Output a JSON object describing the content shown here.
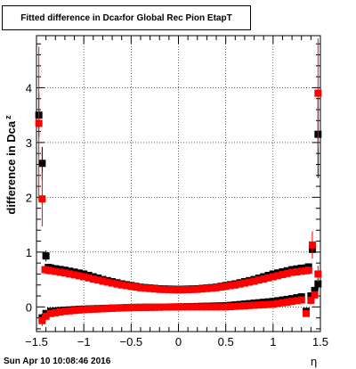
{
  "title": {
    "prefix": "Fitted difference in Dca",
    "sub": "z",
    "suffix": " for Global Rec Pion EtapT"
  },
  "footer": {
    "date": "Sun Apr 10 10:08:46 2016"
  },
  "chart_data": {
    "type": "scatter",
    "xlabel": "η",
    "ylabel": "difference in Dca",
    "ylabel_sub": "z",
    "xlim": [
      -1.5,
      1.5
    ],
    "ylim": [
      -0.45,
      4.95
    ],
    "xticks": [
      -1.5,
      -1,
      -0.5,
      0,
      0.5,
      1,
      1.5
    ],
    "xtick_labels": [
      "−1.5",
      "−1",
      "−0.5",
      "0",
      "0.5",
      "1",
      "1.5"
    ],
    "yticks": [
      0,
      1,
      2,
      3,
      4
    ],
    "ytick_labels": [
      "0",
      "1",
      "2",
      "3",
      "4"
    ],
    "grid": true,
    "colors": {
      "black": "#000000",
      "red": "#ff0000"
    },
    "series": [
      {
        "color": "#000000",
        "marker": "square",
        "points": [
          [
            -1.475,
            3.5,
            0.4
          ],
          [
            -1.44,
            2.62,
            0.3
          ],
          [
            -1.4,
            0.93,
            0.1
          ],
          [
            -1.375,
            0.72,
            0.05
          ],
          [
            1.375,
            0.73,
            0.05
          ],
          [
            1.415,
            1.05,
            0.15
          ],
          [
            1.475,
            3.15,
            0.8
          ]
        ],
        "curve": [
          [
            -1.35,
            0.71
          ],
          [
            -1.2,
            0.67
          ],
          [
            -1.0,
            0.6
          ],
          [
            -0.8,
            0.5
          ],
          [
            -0.6,
            0.42
          ],
          [
            -0.4,
            0.36
          ],
          [
            -0.2,
            0.33
          ],
          [
            0.0,
            0.32
          ],
          [
            0.2,
            0.33
          ],
          [
            0.4,
            0.36
          ],
          [
            0.6,
            0.42
          ],
          [
            0.8,
            0.5
          ],
          [
            1.0,
            0.6
          ],
          [
            1.2,
            0.68
          ],
          [
            1.35,
            0.72
          ]
        ],
        "low_points": [
          [
            -1.44,
            -0.2,
            0.08
          ],
          [
            -1.4,
            -0.12,
            0.05
          ],
          [
            1.4,
            0.2,
            0.05
          ],
          [
            1.44,
            0.3,
            0.05
          ],
          [
            1.475,
            0.42,
            0.1
          ]
        ],
        "low_curve": [
          [
            -1.35,
            -0.08
          ],
          [
            -1.2,
            -0.06
          ],
          [
            -1.0,
            -0.04
          ],
          [
            -0.5,
            -0.01
          ],
          [
            0.0,
            0.0
          ],
          [
            0.5,
            0.02
          ],
          [
            1.0,
            0.1
          ],
          [
            1.2,
            0.15
          ],
          [
            1.35,
            0.2
          ]
        ]
      },
      {
        "color": "#ff0000",
        "marker": "square",
        "points": [
          [
            -1.475,
            3.35,
            1.4
          ],
          [
            -1.44,
            1.97,
            0.5
          ],
          [
            -1.41,
            0.68,
            0.05
          ],
          [
            -1.375,
            0.67,
            0.05
          ],
          [
            1.375,
            0.67,
            0.05
          ],
          [
            1.415,
            1.13,
            0.25
          ],
          [
            1.475,
            3.9,
            1.0
          ]
        ],
        "curve": [
          [
            -1.35,
            0.66
          ],
          [
            -1.2,
            0.62
          ],
          [
            -1.0,
            0.55
          ],
          [
            -0.8,
            0.47
          ],
          [
            -0.6,
            0.4
          ],
          [
            -0.4,
            0.35
          ],
          [
            -0.2,
            0.32
          ],
          [
            0.0,
            0.31
          ],
          [
            0.2,
            0.32
          ],
          [
            0.4,
            0.35
          ],
          [
            0.6,
            0.4
          ],
          [
            0.8,
            0.47
          ],
          [
            1.0,
            0.55
          ],
          [
            1.2,
            0.63
          ],
          [
            1.35,
            0.66
          ]
        ],
        "low_points": [
          [
            -1.44,
            -0.25,
            0.1
          ],
          [
            -1.4,
            -0.17,
            0.05
          ],
          [
            1.4,
            0.12,
            0.05
          ],
          [
            1.44,
            0.22,
            0.05
          ],
          [
            1.475,
            0.6,
            0.15
          ]
        ],
        "low_curve": [
          [
            -1.35,
            -0.12
          ],
          [
            -1.2,
            -0.08
          ],
          [
            -1.0,
            -0.05
          ],
          [
            -0.5,
            -0.01
          ],
          [
            0.0,
            0.0
          ],
          [
            0.5,
            0.0
          ],
          [
            1.0,
            0.05
          ],
          [
            1.2,
            0.1
          ],
          [
            1.35,
            0.14
          ]
        ]
      }
    ]
  }
}
